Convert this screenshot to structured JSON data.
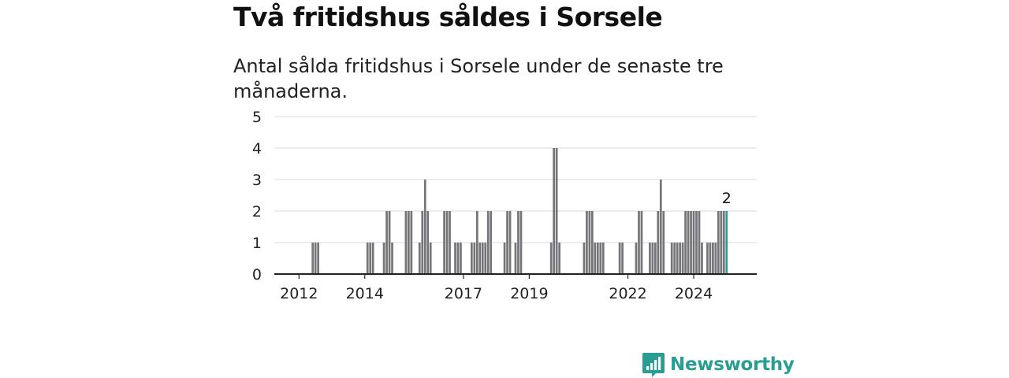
{
  "title": "Två fritidshus såldes i Sorsele",
  "subtitle": "Antal sålda fritidshus i Sorsele under de senaste tre månaderna.",
  "logo": {
    "text": "Newsworthy",
    "icon": "newsworthy-logo-icon",
    "color": "#2a9d92"
  },
  "colors": {
    "bar": "#757579",
    "highlight": "#2a9d92",
    "grid": "#d8d8d8",
    "axis": "#222222"
  },
  "chart_data": {
    "type": "bar",
    "title": "Två fritidshus såldes i Sorsele",
    "subtitle": "Antal sålda fritidshus i Sorsele under de senaste tre månaderna.",
    "xlabel": "",
    "ylabel": "",
    "ylim": [
      0,
      5
    ],
    "yticks": [
      0,
      1,
      2,
      3,
      4,
      5
    ],
    "xlim": [
      "2011-04",
      "2025-12"
    ],
    "xticks": [
      {
        "label": "2012",
        "x": "2012-01"
      },
      {
        "label": "2014",
        "x": "2014-01"
      },
      {
        "label": "2017",
        "x": "2017-01"
      },
      {
        "label": "2019",
        "x": "2019-01"
      },
      {
        "label": "2022",
        "x": "2022-01"
      },
      {
        "label": "2024",
        "x": "2024-01"
      }
    ],
    "grid": true,
    "annotation": {
      "text": "2",
      "x": "2025-01"
    },
    "x": [
      "2012-06",
      "2012-07",
      "2012-08",
      "2014-02",
      "2014-03",
      "2014-04",
      "2014-08",
      "2014-09",
      "2014-10",
      "2014-11",
      "2015-04",
      "2015-05",
      "2015-06",
      "2015-09",
      "2015-10",
      "2015-11",
      "2015-12",
      "2016-01",
      "2016-06",
      "2016-07",
      "2016-08",
      "2016-10",
      "2016-11",
      "2016-12",
      "2017-04",
      "2017-05",
      "2017-06",
      "2017-07",
      "2017-08",
      "2017-09",
      "2017-10",
      "2017-11",
      "2018-04",
      "2018-05",
      "2018-06",
      "2018-08",
      "2018-09",
      "2018-10",
      "2019-09",
      "2019-10",
      "2019-11",
      "2019-12",
      "2020-09",
      "2020-10",
      "2020-11",
      "2020-12",
      "2021-01",
      "2021-02",
      "2021-03",
      "2021-04",
      "2021-10",
      "2021-11",
      "2022-04",
      "2022-05",
      "2022-06",
      "2022-09",
      "2022-10",
      "2022-11",
      "2022-12",
      "2023-01",
      "2023-02",
      "2023-05",
      "2023-06",
      "2023-07",
      "2023-08",
      "2023-09",
      "2023-10",
      "2023-11",
      "2023-12",
      "2024-01",
      "2024-02",
      "2024-03",
      "2024-04",
      "2024-06",
      "2024-07",
      "2024-08",
      "2024-09",
      "2024-10",
      "2024-11",
      "2024-12",
      "2025-01"
    ],
    "values": [
      1,
      1,
      1,
      1,
      1,
      1,
      1,
      2,
      2,
      1,
      2,
      2,
      2,
      1,
      2,
      3,
      2,
      1,
      2,
      2,
      2,
      1,
      1,
      1,
      1,
      1,
      2,
      1,
      1,
      1,
      2,
      2,
      1,
      2,
      2,
      1,
      2,
      2,
      1,
      4,
      4,
      1,
      1,
      2,
      2,
      2,
      1,
      1,
      1,
      1,
      1,
      1,
      1,
      2,
      2,
      1,
      1,
      1,
      2,
      3,
      2,
      1,
      1,
      1,
      1,
      1,
      2,
      2,
      2,
      2,
      2,
      2,
      1,
      1,
      1,
      1,
      1,
      2,
      2,
      2,
      2
    ],
    "highlight": [
      "2025-01"
    ]
  }
}
